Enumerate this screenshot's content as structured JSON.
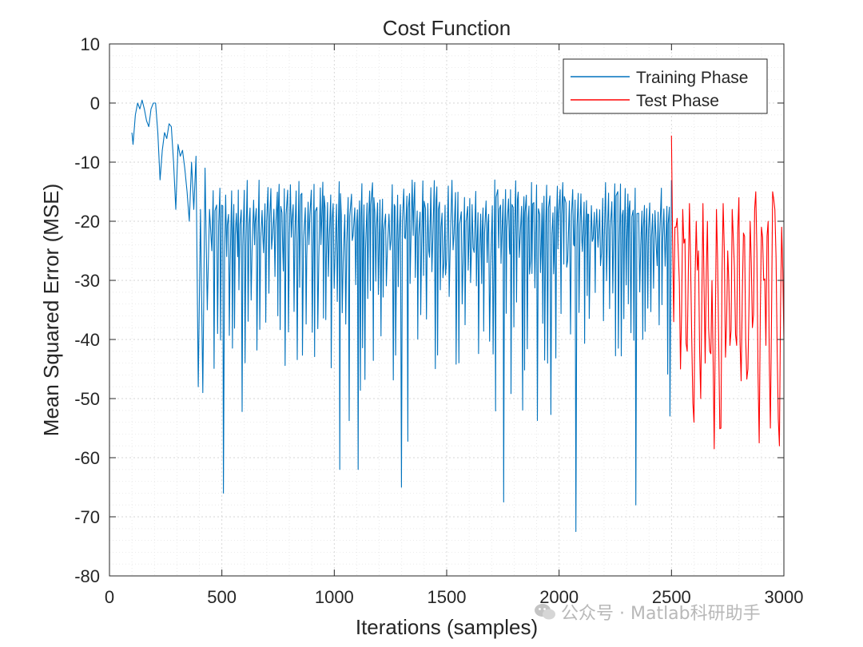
{
  "chart_data": {
    "type": "line",
    "title": "Cost Function",
    "xlabel": "Iterations (samples)",
    "ylabel": "Mean Squared Error (MSE)",
    "xlim": [
      0,
      3000
    ],
    "ylim": [
      -80,
      10
    ],
    "xticks": [
      "0",
      "500",
      "1000",
      "1500",
      "2000",
      "2500",
      "3000"
    ],
    "yticks": [
      "10",
      "0",
      "-10",
      "-20",
      "-30",
      "-40",
      "-50",
      "-60",
      "-70",
      "-80"
    ],
    "grid": "major and minor, dotted",
    "legend_position": "top-right",
    "series": [
      {
        "name": "Training Phase",
        "color": "#0072BD",
        "x_range": [
          100,
          2500
        ],
        "approx_points": [
          [
            100,
            -5
          ],
          [
            105,
            -7
          ],
          [
            115,
            -2
          ],
          [
            125,
            0
          ],
          [
            135,
            -1
          ],
          [
            145,
            0.5
          ],
          [
            155,
            -1
          ],
          [
            165,
            -3
          ],
          [
            175,
            -4
          ],
          [
            185,
            -1
          ],
          [
            195,
            0
          ],
          [
            205,
            0
          ],
          [
            215,
            -5
          ],
          [
            225,
            -13
          ],
          [
            235,
            -8
          ],
          [
            245,
            -5
          ],
          [
            255,
            -6
          ],
          [
            265,
            -3.5
          ],
          [
            275,
            -4
          ],
          [
            285,
            -10
          ],
          [
            295,
            -18
          ],
          [
            305,
            -7
          ],
          [
            315,
            -9
          ],
          [
            325,
            -8
          ],
          [
            335,
            -11
          ],
          [
            345,
            -15
          ],
          [
            355,
            -20
          ],
          [
            365,
            -10
          ],
          [
            375,
            -18
          ],
          [
            385,
            -9
          ],
          [
            395,
            -48
          ],
          [
            405,
            -18
          ],
          [
            415,
            -49
          ],
          [
            425,
            -11
          ],
          [
            435,
            -35
          ],
          [
            445,
            -18
          ],
          [
            455,
            -25
          ]
        ],
        "envelope": {
          "upper": -13,
          "typical_low": -45,
          "extreme_minima": [
            -74,
            -66,
            -62,
            -65,
            -67,
            -72,
            -68
          ]
        },
        "notable_minima": [
          [
            500,
            -74
          ],
          [
            510,
            -66
          ],
          [
            1020,
            -62
          ],
          [
            1110,
            -62
          ],
          [
            1300,
            -65
          ],
          [
            1750,
            -67.5
          ],
          [
            2080,
            -72.5
          ],
          [
            2340,
            -68
          ]
        ]
      },
      {
        "name": "Test Phase",
        "color": "#FF0000",
        "x_range": [
          2500,
          3000
        ],
        "approx_points": [
          [
            2500,
            -5.5
          ],
          [
            2510,
            -37
          ],
          [
            2520,
            -21
          ],
          [
            2530,
            -25
          ],
          [
            2540,
            -45
          ],
          [
            2550,
            -18
          ],
          [
            2560,
            -23
          ],
          [
            2570,
            -42
          ],
          [
            2580,
            -17
          ],
          [
            2590,
            -40
          ],
          [
            2600,
            -54
          ],
          [
            2610,
            -20
          ],
          [
            2620,
            -25
          ],
          [
            2630,
            -50
          ],
          [
            2640,
            -17
          ],
          [
            2650,
            -44
          ],
          [
            2660,
            -20
          ],
          [
            2670,
            -42
          ],
          [
            2680,
            -30
          ],
          [
            2690,
            -58.5
          ],
          [
            2700,
            -18
          ],
          [
            2710,
            -40
          ],
          [
            2720,
            -55
          ],
          [
            2730,
            -17
          ],
          [
            2740,
            -43
          ],
          [
            2750,
            -25
          ],
          [
            2760,
            -41
          ],
          [
            2770,
            -18
          ],
          [
            2780,
            -28
          ],
          [
            2790,
            -41
          ],
          [
            2800,
            -16
          ],
          [
            2810,
            -47
          ],
          [
            2820,
            -22
          ],
          [
            2830,
            -40
          ],
          [
            2840,
            -45
          ],
          [
            2850,
            -20
          ],
          [
            2860,
            -38
          ],
          [
            2870,
            -18
          ],
          [
            2880,
            -25
          ],
          [
            2890,
            -57.5
          ],
          [
            2900,
            -21
          ],
          [
            2910,
            -30
          ],
          [
            2920,
            -41
          ],
          [
            2930,
            -20
          ],
          [
            2940,
            -55
          ],
          [
            2950,
            -15
          ],
          [
            2960,
            -18
          ],
          [
            2970,
            -42
          ],
          [
            2980,
            -58
          ],
          [
            2990,
            -21
          ],
          [
            3000,
            -40
          ]
        ]
      }
    ]
  },
  "watermark": {
    "text": "公众号 · Matlab科研助手",
    "icon": "wechat-icon"
  }
}
